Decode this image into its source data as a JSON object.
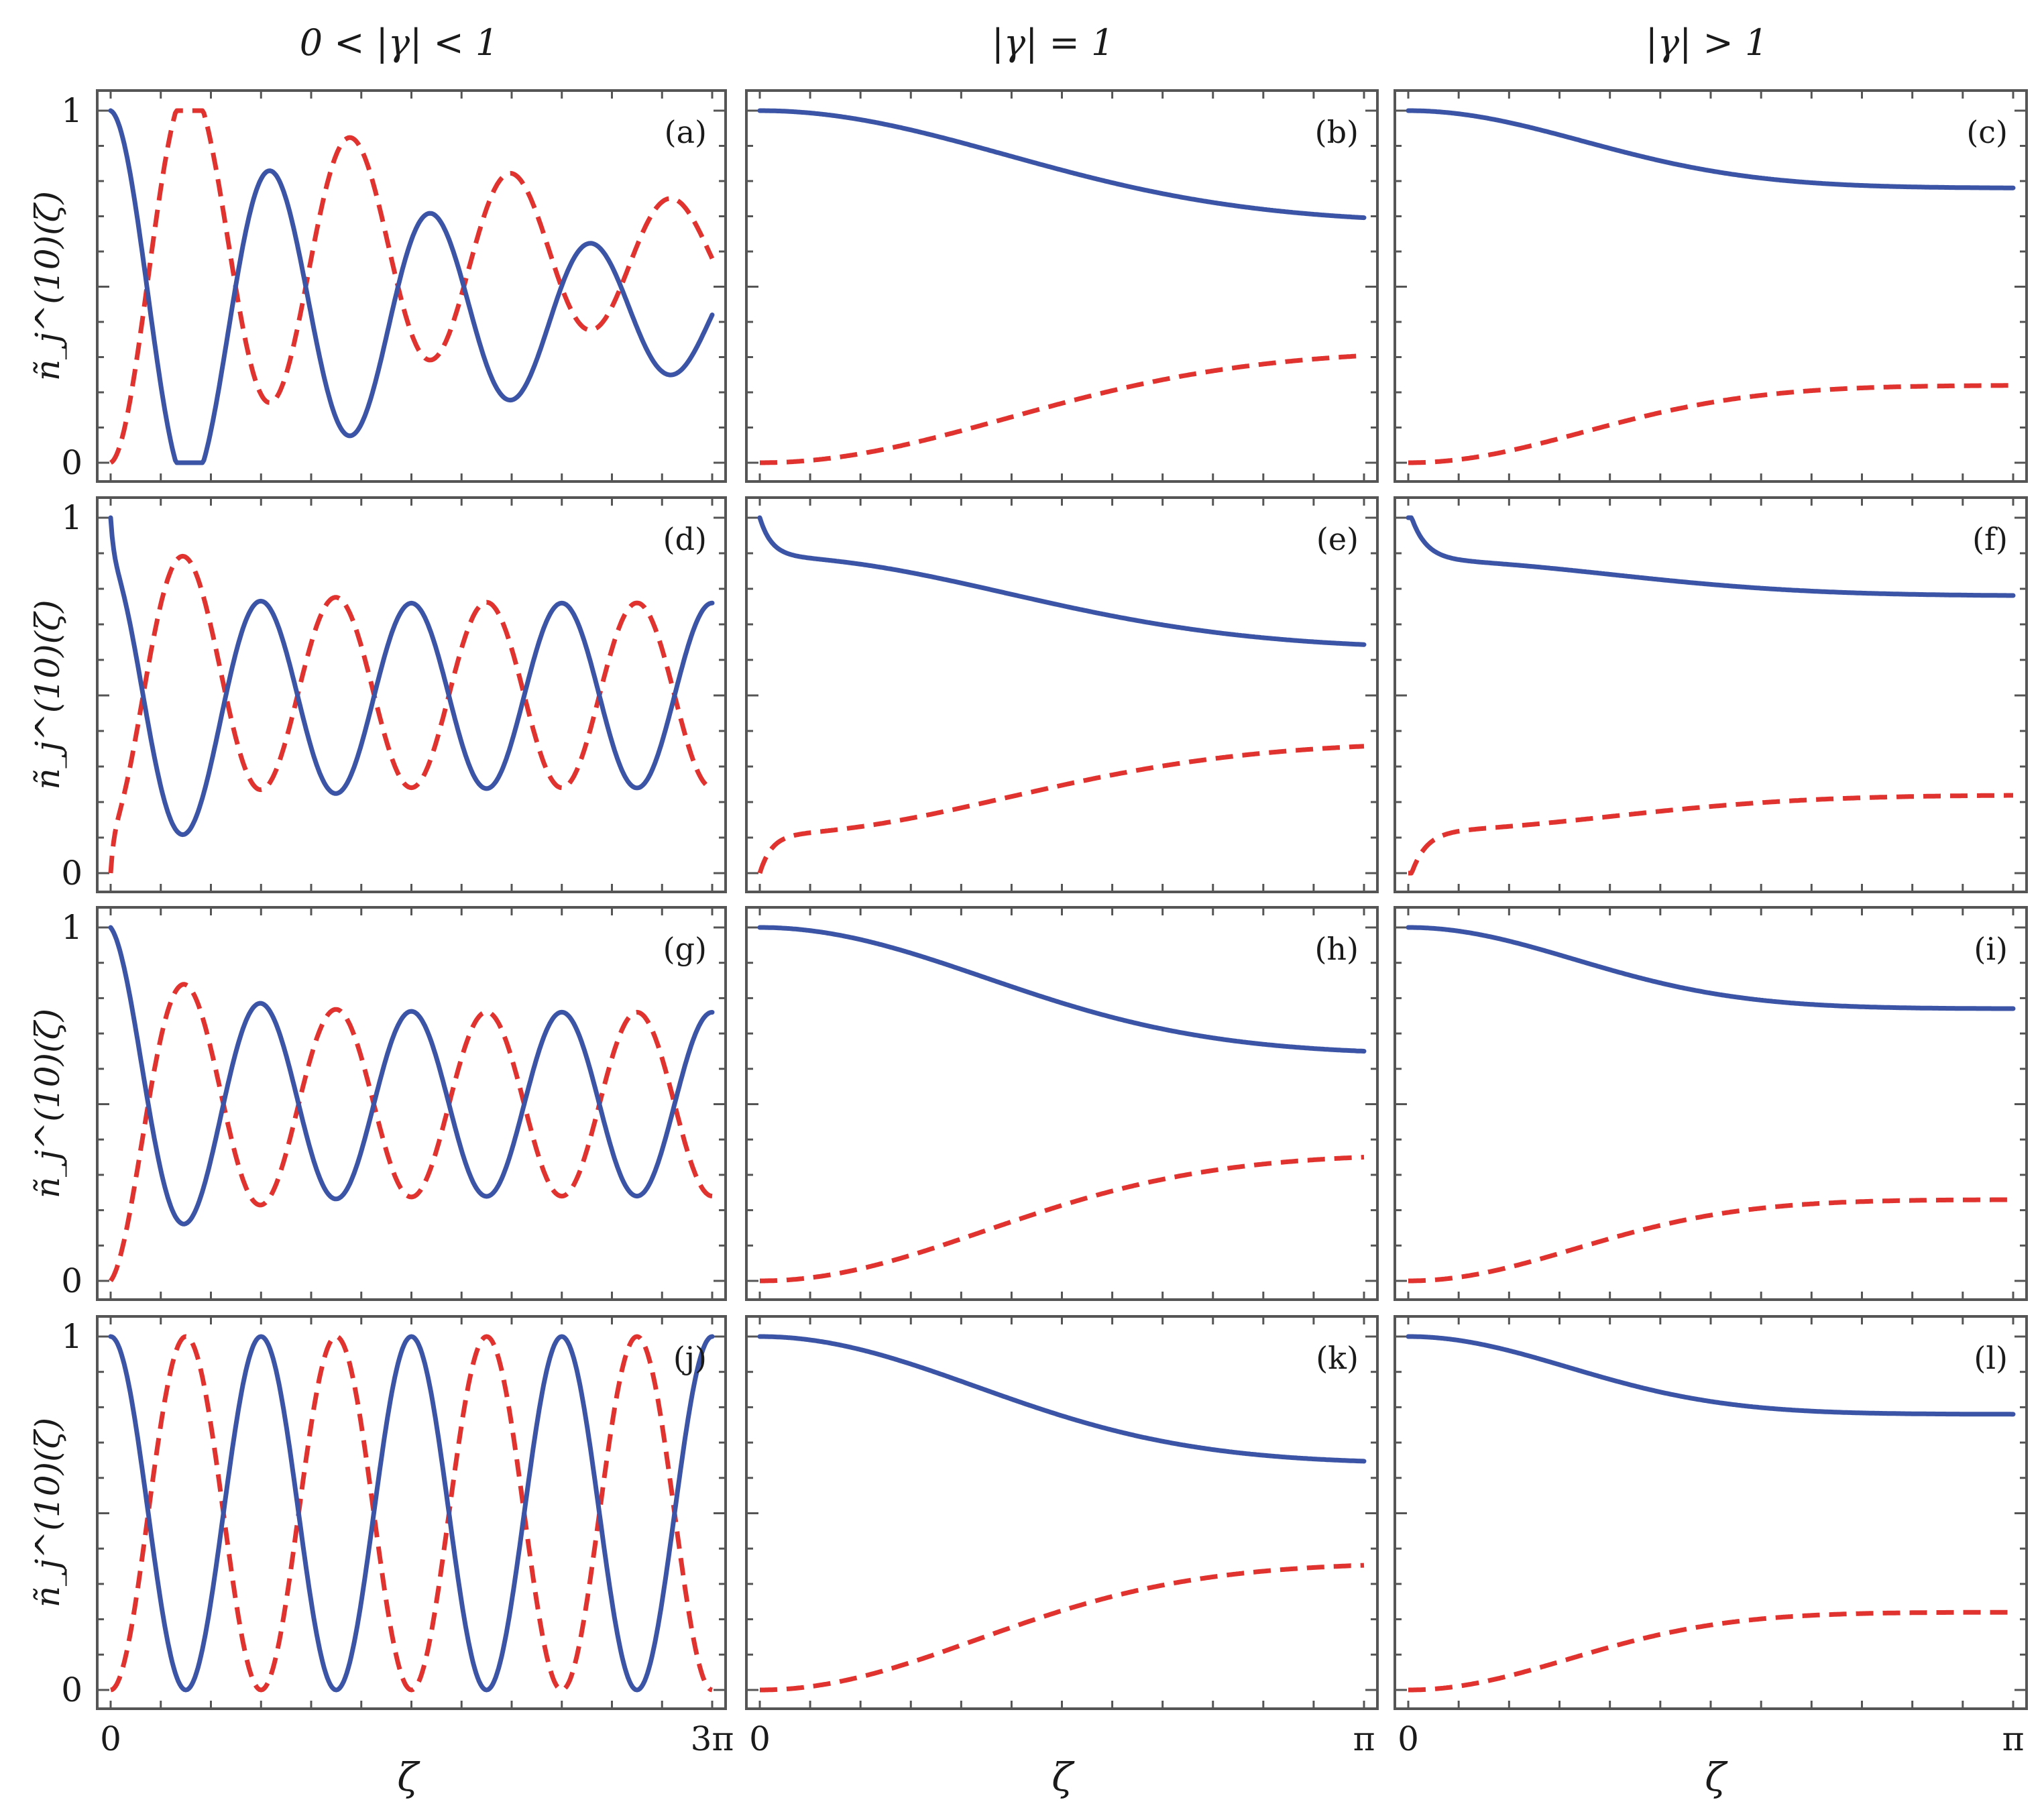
{
  "columns": [
    {
      "title": "0 < |γ| < 1",
      "x_tick_labels": [
        "0",
        "3π"
      ],
      "xmax_over_pi": 3
    },
    {
      "title": "|γ| = 1",
      "x_tick_labels": [
        "0",
        "π"
      ],
      "xmax_over_pi": 1
    },
    {
      "title": "|γ| > 1",
      "x_tick_labels": [
        "0",
        "π"
      ],
      "xmax_over_pi": 1
    }
  ],
  "y_axis_label": "ñ_j^(10)(ζ)",
  "y_tick_labels": [
    "0",
    "1"
  ],
  "x_axis_label": "ζ",
  "colors": {
    "solid": "#3c54a6",
    "dashed": "#e0332f",
    "frame": "#555555"
  },
  "chart_data": [
    {
      "panel": "(a)",
      "type": "line",
      "row": 0,
      "col": 0,
      "ylim": [
        0,
        1
      ],
      "series": [
        {
          "style": "solid",
          "kind": "damped-osc",
          "start": 1,
          "mean": 0.42,
          "amp": 0.58,
          "period_over_pi": 0.8,
          "decay": 0.7
        },
        {
          "style": "dashed",
          "kind": "complement"
        }
      ]
    },
    {
      "panel": "(b)",
      "type": "line",
      "row": 0,
      "col": 1,
      "ylim": [
        0,
        1
      ],
      "series": [
        {
          "style": "solid",
          "kind": "relax",
          "start": 1,
          "end": 0.68,
          "rate": 1.0
        },
        {
          "style": "dashed",
          "kind": "complement"
        }
      ]
    },
    {
      "panel": "(c)",
      "type": "line",
      "row": 0,
      "col": 2,
      "ylim": [
        0,
        1
      ],
      "series": [
        {
          "style": "solid",
          "kind": "relax",
          "start": 1,
          "end": 0.78,
          "rate": 2.0
        },
        {
          "style": "dashed",
          "kind": "complement"
        }
      ]
    },
    {
      "panel": "(d)",
      "type": "line",
      "row": 1,
      "col": 0,
      "ylim": [
        0,
        1
      ],
      "series": [
        {
          "style": "solid",
          "kind": "osc",
          "start": 1,
          "mean": 0.5,
          "amp": 0.5,
          "period_over_pi": 0.75,
          "hi": 0.76,
          "lo": 0.24,
          "dip": 0.13,
          "dip_rate": 60
        },
        {
          "style": "dashed",
          "kind": "complement"
        }
      ]
    },
    {
      "panel": "(e)",
      "type": "line",
      "row": 1,
      "col": 1,
      "ylim": [
        0,
        1
      ],
      "series": [
        {
          "style": "solid",
          "kind": "relax",
          "start": 0.89,
          "end": 0.63,
          "rate": 1.0,
          "dip": 0.11,
          "dip_rate": 50
        },
        {
          "style": "dashed",
          "kind": "complement"
        }
      ]
    },
    {
      "panel": "(f)",
      "type": "line",
      "row": 1,
      "col": 2,
      "ylim": [
        0,
        1
      ],
      "series": [
        {
          "style": "solid",
          "kind": "relax",
          "start": 0.88,
          "end": 0.78,
          "rate": 1.5,
          "dip": 0.15,
          "dip_rate": 40
        },
        {
          "style": "dashed",
          "kind": "complement"
        }
      ]
    },
    {
      "panel": "(g)",
      "type": "line",
      "row": 2,
      "col": 0,
      "ylim": [
        0,
        1
      ],
      "series": [
        {
          "style": "solid",
          "kind": "osc",
          "start": 1,
          "mean": 0.5,
          "amp": 0.5,
          "period_over_pi": 0.75,
          "hi": 0.76,
          "lo": 0.24
        },
        {
          "style": "dashed",
          "kind": "complement"
        }
      ]
    },
    {
      "panel": "(h)",
      "type": "line",
      "row": 2,
      "col": 1,
      "ylim": [
        0,
        1
      ],
      "series": [
        {
          "style": "solid",
          "kind": "relax",
          "start": 1,
          "end": 0.64,
          "rate": 1.2
        },
        {
          "style": "dashed",
          "kind": "complement"
        }
      ]
    },
    {
      "panel": "(i)",
      "type": "line",
      "row": 2,
      "col": 2,
      "ylim": [
        0,
        1
      ],
      "series": [
        {
          "style": "solid",
          "kind": "relax",
          "start": 1,
          "end": 0.77,
          "rate": 2.2
        },
        {
          "style": "dashed",
          "kind": "complement"
        }
      ]
    },
    {
      "panel": "(j)",
      "type": "line",
      "row": 3,
      "col": 0,
      "ylim": [
        0,
        1
      ],
      "series": [
        {
          "style": "solid",
          "kind": "osc",
          "start": 1,
          "mean": 0.5,
          "amp": 0.5,
          "period_over_pi": 0.75,
          "hi": 1.0,
          "lo": 0.0
        },
        {
          "style": "dashed",
          "kind": "complement"
        }
      ]
    },
    {
      "panel": "(k)",
      "type": "line",
      "row": 3,
      "col": 1,
      "ylim": [
        0,
        1
      ],
      "series": [
        {
          "style": "solid",
          "kind": "relax",
          "start": 1,
          "end": 0.64,
          "rate": 1.3
        },
        {
          "style": "dashed",
          "kind": "complement"
        }
      ]
    },
    {
      "panel": "(l)",
      "type": "line",
      "row": 3,
      "col": 2,
      "ylim": [
        0,
        1
      ],
      "series": [
        {
          "style": "solid",
          "kind": "relax",
          "start": 1,
          "end": 0.78,
          "rate": 2.4
        },
        {
          "style": "dashed",
          "kind": "complement"
        }
      ]
    }
  ]
}
